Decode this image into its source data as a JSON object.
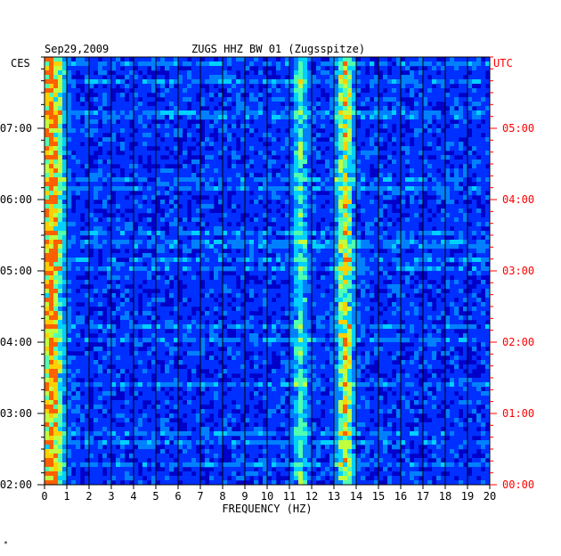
{
  "chart_data": {
    "type": "heatmap",
    "date": "Sep29,2009",
    "title": "ZUGS HHZ BW 01 (Zugsspitze)",
    "left_zone": "CES",
    "right_zone": "UTC",
    "xlabel": "FREQUENCY (HZ)",
    "xlim": [
      0,
      20
    ],
    "x_ticks": [
      "0",
      "1",
      "2",
      "3",
      "4",
      "5",
      "6",
      "7",
      "8",
      "9",
      "10",
      "11",
      "12",
      "13",
      "14",
      "15",
      "16",
      "17",
      "18",
      "19",
      "20"
    ],
    "y_ticks_left": [
      "02:00",
      "03:00",
      "04:00",
      "05:00",
      "06:00",
      "07:00"
    ],
    "y_ticks_right": [
      "00:00",
      "01:00",
      "02:00",
      "03:00",
      "04:00",
      "05:00"
    ],
    "time_range_hours": [
      2,
      8
    ],
    "colormap": [
      "#00007f",
      "#0000d0",
      "#0030ff",
      "#0080ff",
      "#00d0ff",
      "#50ffb0",
      "#c0ff40",
      "#ffd000",
      "#ff6000"
    ],
    "background_level": "dark blue",
    "energy_bands_hz": [
      {
        "center": 0.3,
        "width": 0.5,
        "intensity": 0.75
      },
      {
        "center": 13.5,
        "width": 0.35,
        "intensity": 0.55
      },
      {
        "center": 11.5,
        "width": 0.3,
        "intensity": 0.35
      }
    ],
    "colors": {
      "axis": "#000000",
      "utc_labels": "#ff0000",
      "grid": "#000000"
    }
  },
  "footnote": "*"
}
